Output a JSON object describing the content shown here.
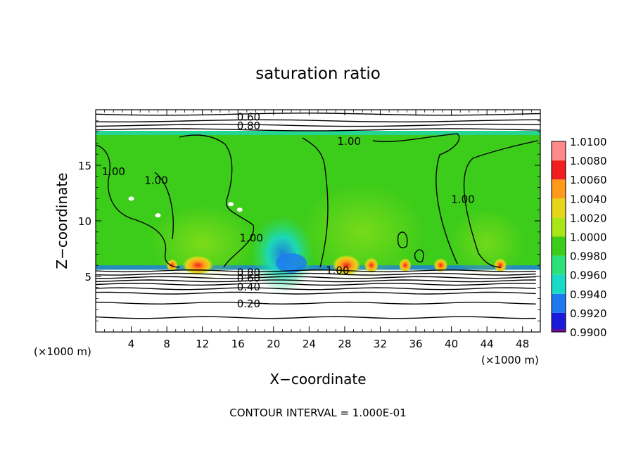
{
  "chart_data": {
    "type": "heatmap",
    "title": "saturation ratio",
    "xlabel": "X−coordinate",
    "ylabel": "Z−coordinate",
    "x_unit_left": "(×1000 m)",
    "x_unit_right": "(×1000 m)",
    "xlim": [
      0,
      50
    ],
    "ylim": [
      0,
      20
    ],
    "x_ticks": [
      4,
      8,
      12,
      16,
      20,
      24,
      28,
      32,
      36,
      40,
      44,
      48
    ],
    "y_ticks": [
      5,
      10,
      15
    ],
    "footer": "CONTOUR INTERVAL = 1.000E-01",
    "colorbar": {
      "levels": [
        "0.9900",
        "0.9920",
        "0.9940",
        "0.9960",
        "0.9980",
        "1.0000",
        "1.0020",
        "1.0040",
        "1.0060",
        "1.0080",
        "1.0100"
      ],
      "colors": [
        "#6a0d99",
        "#1a1ad9",
        "#1e78f0",
        "#19d9c8",
        "#2ee07a",
        "#3ccc1a",
        "#a8e619",
        "#e6d619",
        "#ff9a1a",
        "#f01e1e",
        "#ff8a8a"
      ]
    },
    "contour_labels": [
      {
        "text": "0.60",
        "x": 17.2,
        "y": 19.4
      },
      {
        "text": "0.80",
        "x": 17.2,
        "y": 18.6
      },
      {
        "text": "1.00",
        "x": 28.5,
        "y": 17.2
      },
      {
        "text": "1.00",
        "x": 2.0,
        "y": 14.5
      },
      {
        "text": "1.00",
        "x": 6.8,
        "y": 13.7
      },
      {
        "text": "1.00",
        "x": 41.3,
        "y": 12.0
      },
      {
        "text": "1.00",
        "x": 17.5,
        "y": 8.5
      },
      {
        "text": "1.00",
        "x": 27.2,
        "y": 5.6
      },
      {
        "text": "0.80",
        "x": 17.2,
        "y": 5.4
      },
      {
        "text": "0.60",
        "x": 17.2,
        "y": 4.9
      },
      {
        "text": "0.40",
        "x": 17.2,
        "y": 4.1
      },
      {
        "text": "0.20",
        "x": 17.2,
        "y": 2.6
      }
    ]
  }
}
